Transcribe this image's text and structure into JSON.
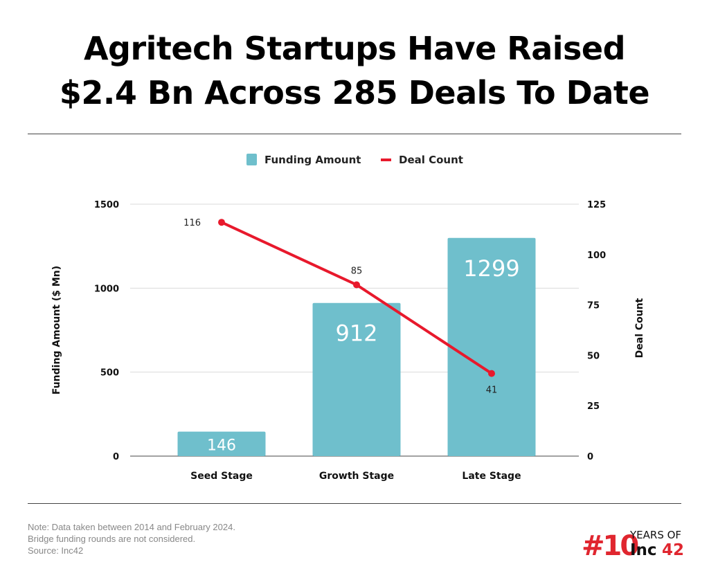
{
  "title_line1": "Agritech Startups Have Raised",
  "title_line2": "$2.4 Bn Across 285 Deals To Date",
  "notes": [
    "Note: Data taken between 2014 and February 2024.",
    "Bridge funding rounds are not considered.",
    "Source: Inc42"
  ],
  "logo": {
    "hash": "#10",
    "years": "YEARS OF",
    "brand": "Inc",
    "brand_num": "42"
  },
  "colors": {
    "bar": "#6fbfcc",
    "line": "#e8192c",
    "grid": "#d9d9d9",
    "logo_red": "#e0262f"
  },
  "chart_data": {
    "type": "bar+line",
    "categories": [
      "Seed Stage",
      "Growth Stage",
      "Late Stage"
    ],
    "series": [
      {
        "name": "Funding Amount",
        "type": "bar",
        "axis": "left",
        "values": [
          146,
          912,
          1299
        ]
      },
      {
        "name": "Deal Count",
        "type": "line",
        "axis": "right",
        "values": [
          116,
          85,
          41
        ]
      }
    ],
    "ylabel": "Funding Amount ($ Mn)",
    "y2label": "Deal Count",
    "ylim": [
      0,
      1500
    ],
    "yticks": [
      "0",
      "500",
      "1000",
      "1500"
    ],
    "y2lim": [
      0,
      125
    ],
    "y2ticks": [
      "0",
      "25",
      "50",
      "75",
      "100",
      "125"
    ],
    "grid": true,
    "legend": "top-center"
  }
}
